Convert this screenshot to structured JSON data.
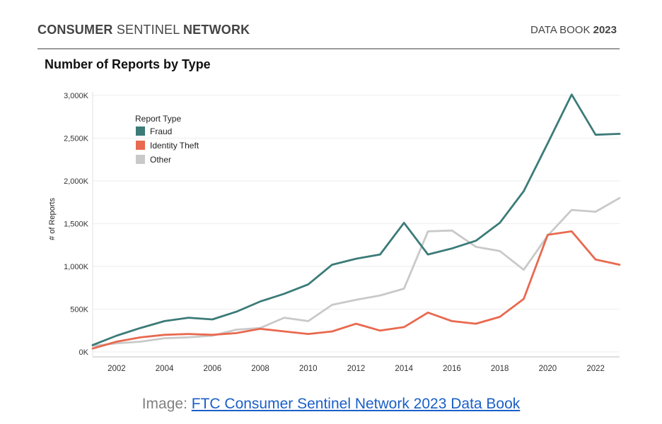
{
  "header": {
    "left_bold_1": "CONSUMER",
    "left_light": "SENTINEL",
    "left_bold_2": "NETWORK",
    "right_light": "DATA BOOK",
    "right_bold": "2023"
  },
  "caption": {
    "prefix": "Image:",
    "link_text": "FTC Consumer Sentinel Network 2023 Data Book"
  },
  "chart_data": {
    "type": "line",
    "title": "Number of Reports by Type",
    "xlabel": "",
    "ylabel": "# of Reports",
    "x": [
      2001,
      2002,
      2003,
      2004,
      2005,
      2006,
      2007,
      2008,
      2009,
      2010,
      2011,
      2012,
      2013,
      2014,
      2015,
      2016,
      2017,
      2018,
      2019,
      2020,
      2021,
      2022,
      2023
    ],
    "xlim": [
      2001,
      2023
    ],
    "xticks": [
      2002,
      2004,
      2006,
      2008,
      2010,
      2012,
      2014,
      2016,
      2018,
      2020,
      2022
    ],
    "xtick_labels": [
      "2002",
      "2004",
      "2006",
      "2008",
      "2010",
      "2012",
      "2014",
      "2016",
      "2018",
      "2020",
      "2022"
    ],
    "ylim": [
      0,
      3000000
    ],
    "yticks": [
      0,
      500000,
      1000000,
      1500000,
      2000000,
      2500000,
      3000000
    ],
    "ytick_labels": [
      "0K",
      "500K",
      "1,000K",
      "1,500K",
      "2,000K",
      "2,500K",
      "3,000K"
    ],
    "legend_title": "Report Type",
    "legend_position": "top-left",
    "grid": true,
    "series": [
      {
        "name": "Fraud",
        "color": "#3b7b78",
        "values": [
          80000,
          190000,
          280000,
          360000,
          400000,
          380000,
          470000,
          590000,
          680000,
          790000,
          1020000,
          1090000,
          1140000,
          1510000,
          1140000,
          1210000,
          1300000,
          1510000,
          1880000,
          2440000,
          3010000,
          2540000,
          2550000
        ]
      },
      {
        "name": "Identity Theft",
        "color": "#e8694f",
        "values": [
          40000,
          120000,
          170000,
          200000,
          210000,
          200000,
          220000,
          270000,
          240000,
          210000,
          240000,
          330000,
          250000,
          290000,
          460000,
          360000,
          330000,
          410000,
          620000,
          1370000,
          1410000,
          1080000,
          1020000
        ]
      },
      {
        "name": "Other",
        "color": "#c9c9c9",
        "values": [
          70000,
          100000,
          120000,
          160000,
          170000,
          190000,
          260000,
          280000,
          400000,
          360000,
          550000,
          610000,
          660000,
          740000,
          1410000,
          1420000,
          1230000,
          1180000,
          960000,
          1360000,
          1660000,
          1640000,
          1800000
        ]
      }
    ]
  }
}
